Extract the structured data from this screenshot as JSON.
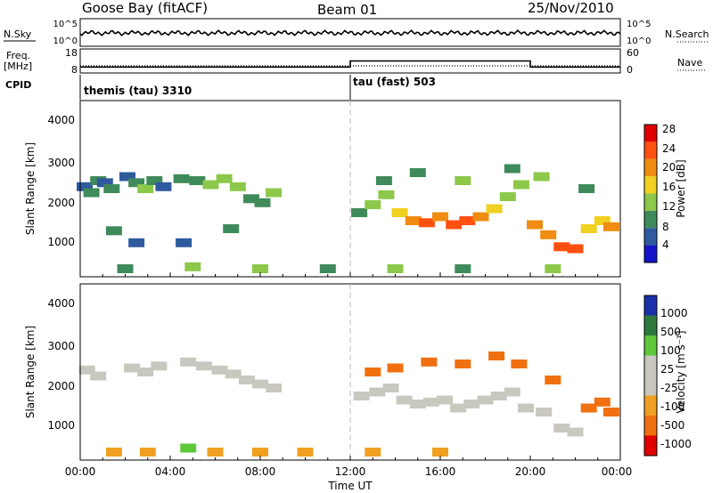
{
  "header": {
    "station": "Goose Bay (fitACF)",
    "beam": "Beam 01",
    "date": "25/Nov/2010"
  },
  "top_panels": {
    "nsky_label": "N.Sky",
    "nsky_ticks": [
      "10^5",
      "10^0"
    ],
    "nsearch_label": "N.Search",
    "nsearch_ticks": [
      "10^5",
      "10^0"
    ],
    "freq_label": "Freq.",
    "freq_unit": "[MHz]",
    "freq_ticks": [
      "18",
      "8"
    ],
    "nave_label": "Nave",
    "nave_ticks": [
      "60",
      "0"
    ],
    "cpid_label": "CPID",
    "cpid_segments": [
      {
        "label": "themis (tau) 3310",
        "start_h": 0,
        "end_h": 12
      },
      {
        "label": "tau (fast) 503",
        "start_h": 12,
        "end_h": 24
      }
    ]
  },
  "power_panel": {
    "ylabel": "Slant Range [km]",
    "yticks": [
      "1000",
      "2000",
      "3000",
      "4000"
    ],
    "colorbar_label": "Power [dB]",
    "colorbar_ticks": [
      "4",
      "8",
      "12",
      "16",
      "20",
      "24",
      "28"
    ]
  },
  "velocity_panel": {
    "ylabel": "Slant Range [km]",
    "yticks": [
      "1000",
      "2000",
      "3000",
      "4000"
    ],
    "colorbar_label": "Velocity [m s⁻¹]",
    "colorbar_ticks": [
      "1000",
      "500",
      "100",
      "25",
      "-25",
      "-100",
      "-500",
      "-1000"
    ]
  },
  "x_axis": {
    "label": "Time UT",
    "ticks": [
      "00:00",
      "04:00",
      "08:00",
      "12:00",
      "16:00",
      "20:00",
      "00:00"
    ]
  },
  "colors": {
    "power_scale": [
      "#1414c8",
      "#2f5a9e",
      "#3f8a5a",
      "#8cc84a",
      "#f0d020",
      "#f08c10",
      "#ff5010",
      "#e00000"
    ],
    "velocity_scale": [
      "#1a2fa8",
      "#2e7a3e",
      "#5ec83a",
      "#c8c8c0",
      "#c8c8c0",
      "#f0a020",
      "#f07010",
      "#e00000"
    ]
  },
  "chart_data": [
    {
      "type": "line",
      "title": "Goose Bay (fitACF)",
      "series": [
        {
          "name": "N.Sky"
        },
        {
          "name": "N.Search"
        }
      ],
      "x": [
        0,
        24
      ],
      "xlim": [
        0,
        24
      ]
    },
    {
      "type": "line",
      "series": [
        {
          "name": "Freq.",
          "x": [
            0,
            12,
            12,
            20,
            20,
            24
          ],
          "values": [
            10.5,
            10.5,
            13,
            13,
            10.5,
            10.5
          ]
        },
        {
          "name": "Nave"
        }
      ],
      "xlim": [
        0,
        24
      ],
      "ylim": [
        8,
        18
      ]
    },
    {
      "type": "heatmap",
      "title": "Power [dB]",
      "xlabel": "Time UT",
      "ylabel": "Slant Range [km]",
      "xlim": [
        0,
        24
      ],
      "ylim": [
        200,
        4600
      ],
      "clim": [
        0,
        30
      ],
      "cells": [
        [
          0.2,
          2450,
          6
        ],
        [
          0.5,
          2300,
          8
        ],
        [
          0.8,
          2600,
          10
        ],
        [
          1.1,
          2550,
          6
        ],
        [
          1.4,
          2400,
          8
        ],
        [
          2.1,
          2700,
          6
        ],
        [
          2.5,
          2550,
          10
        ],
        [
          2.9,
          2400,
          12
        ],
        [
          3.3,
          2600,
          8
        ],
        [
          3.7,
          2450,
          6
        ],
        [
          4.5,
          2650,
          8
        ],
        [
          5.2,
          2600,
          10
        ],
        [
          5.8,
          2500,
          12
        ],
        [
          6.4,
          2650,
          14
        ],
        [
          7.0,
          2450,
          12
        ],
        [
          7.6,
          2150,
          10
        ],
        [
          8.1,
          2050,
          8
        ],
        [
          8.6,
          2300,
          12
        ],
        [
          1.5,
          1350,
          8
        ],
        [
          2.5,
          1050,
          6
        ],
        [
          4.6,
          1050,
          6
        ],
        [
          6.7,
          1400,
          10
        ],
        [
          12.4,
          1800,
          10
        ],
        [
          13.0,
          2000,
          12
        ],
        [
          13.6,
          2250,
          14
        ],
        [
          14.2,
          1800,
          18
        ],
        [
          14.8,
          1600,
          22
        ],
        [
          15.4,
          1550,
          24
        ],
        [
          16.0,
          1700,
          20
        ],
        [
          16.6,
          1500,
          26
        ],
        [
          17.2,
          1600,
          24
        ],
        [
          17.8,
          1700,
          22
        ],
        [
          18.4,
          1900,
          16
        ],
        [
          19.0,
          2200,
          14
        ],
        [
          19.6,
          2500,
          12
        ],
        [
          20.2,
          1500,
          20
        ],
        [
          20.8,
          1250,
          22
        ],
        [
          21.4,
          950,
          26
        ],
        [
          22.0,
          900,
          24
        ],
        [
          22.6,
          1400,
          18
        ],
        [
          23.2,
          1600,
          16
        ],
        [
          23.6,
          1450,
          22
        ],
        [
          13.5,
          2600,
          10
        ],
        [
          15.0,
          2800,
          8
        ],
        [
          17.0,
          2600,
          14
        ],
        [
          19.2,
          2900,
          10
        ],
        [
          20.5,
          2700,
          12
        ],
        [
          22.5,
          2400,
          10
        ],
        [
          2.0,
          400,
          10
        ],
        [
          5.0,
          450,
          14
        ],
        [
          8.0,
          400,
          12
        ],
        [
          11.0,
          400,
          10
        ],
        [
          14.0,
          400,
          12
        ],
        [
          17.0,
          400,
          10
        ],
        [
          21.0,
          400,
          12
        ]
      ]
    },
    {
      "type": "heatmap",
      "title": "Velocity [m s⁻¹]",
      "xlabel": "Time UT",
      "ylabel": "Slant Range [km]",
      "xlim": [
        0,
        24
      ],
      "ylim": [
        200,
        4600
      ],
      "clim": [
        -1000,
        1000
      ],
      "cells": [
        [
          0.3,
          2450,
          0
        ],
        [
          0.8,
          2300,
          0
        ],
        [
          2.3,
          2500,
          0
        ],
        [
          2.9,
          2400,
          0
        ],
        [
          3.5,
          2550,
          0
        ],
        [
          4.8,
          2650,
          0
        ],
        [
          5.5,
          2550,
          0
        ],
        [
          6.2,
          2450,
          0
        ],
        [
          6.8,
          2350,
          0
        ],
        [
          7.4,
          2200,
          0
        ],
        [
          8.0,
          2100,
          0
        ],
        [
          8.6,
          2000,
          0
        ],
        [
          12.5,
          1800,
          0
        ],
        [
          13.2,
          1900,
          0
        ],
        [
          13.8,
          2000,
          0
        ],
        [
          14.4,
          1700,
          0
        ],
        [
          15.0,
          1600,
          0
        ],
        [
          15.6,
          1650,
          0
        ],
        [
          16.2,
          1700,
          0
        ],
        [
          16.8,
          1500,
          0
        ],
        [
          17.4,
          1600,
          0
        ],
        [
          18.0,
          1700,
          0
        ],
        [
          18.6,
          1800,
          0
        ],
        [
          19.2,
          1900,
          0
        ],
        [
          19.8,
          1500,
          0
        ],
        [
          20.6,
          1400,
          0
        ],
        [
          21.4,
          1000,
          0
        ],
        [
          22.0,
          900,
          0
        ],
        [
          22.6,
          1500,
          -500
        ],
        [
          23.2,
          1650,
          -500
        ],
        [
          23.6,
          1400,
          -500
        ],
        [
          13.0,
          2400,
          -500
        ],
        [
          14.0,
          2500,
          -500
        ],
        [
          15.5,
          2650,
          -500
        ],
        [
          17.0,
          2600,
          -500
        ],
        [
          18.5,
          2800,
          -500
        ],
        [
          19.5,
          2600,
          -500
        ],
        [
          21.0,
          2200,
          -500
        ],
        [
          1.5,
          400,
          -100
        ],
        [
          3.0,
          400,
          -100
        ],
        [
          4.8,
          500,
          100
        ],
        [
          6.0,
          400,
          -100
        ],
        [
          8.0,
          400,
          -100
        ],
        [
          10.0,
          400,
          -100
        ],
        [
          13.0,
          400,
          -100
        ],
        [
          16.0,
          400,
          -100
        ]
      ]
    }
  ]
}
